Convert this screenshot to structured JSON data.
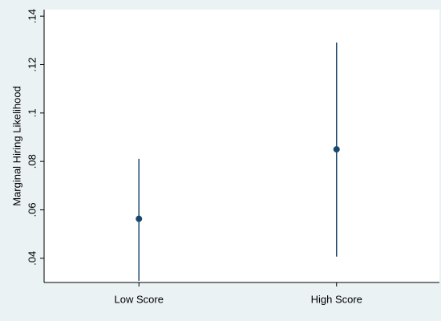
{
  "chart_data": {
    "type": "errorbar",
    "ylabel": "Marginal Hiring Likelihood",
    "categories": [
      "Low Score",
      "High Score"
    ],
    "series": [
      {
        "color": "#1a476f",
        "values": [
          0.0563,
          0.085
        ],
        "lower": [
          0.0307,
          0.0407
        ],
        "upper": [
          0.0811,
          0.1291
        ]
      }
    ],
    "ylim": [
      0.03,
      0.1427
    ],
    "yticks": [
      {
        "value": 0.04,
        "label": ".04"
      },
      {
        "value": 0.06,
        "label": ".06"
      },
      {
        "value": 0.08,
        "label": ".08"
      },
      {
        "value": 0.1,
        "label": ".1"
      },
      {
        "value": 0.12,
        "label": ".12"
      },
      {
        "value": 0.14,
        "label": ".14"
      }
    ],
    "grid": false
  }
}
